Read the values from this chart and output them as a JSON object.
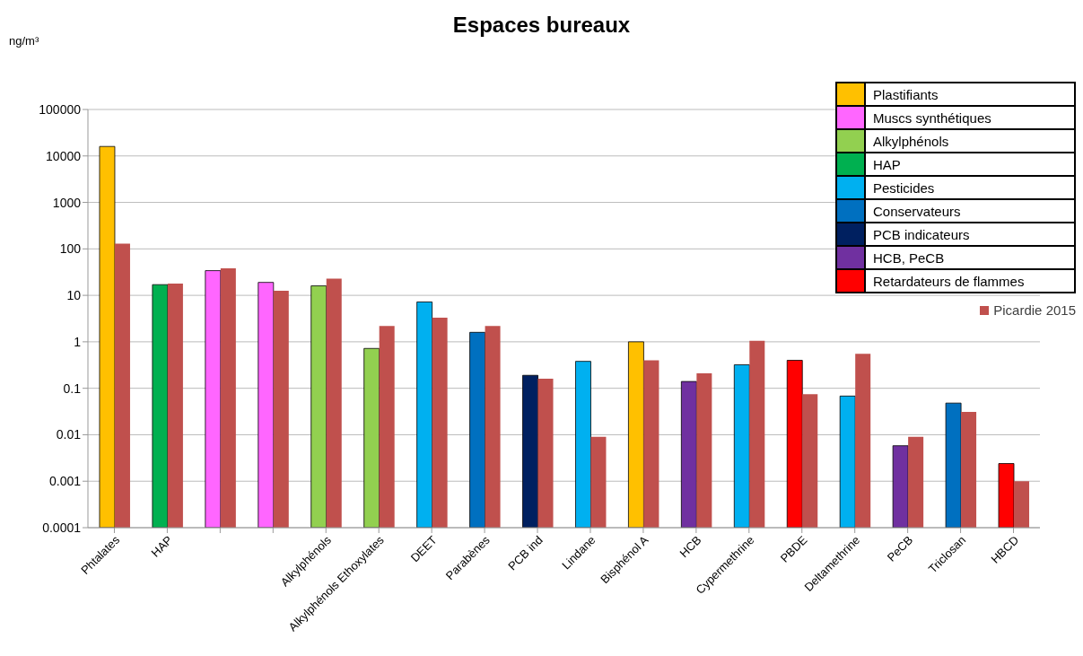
{
  "chart_data": {
    "type": "bar",
    "title": "Espaces bureaux",
    "ylabel": "ng/m³",
    "categories": [
      "Phtalates",
      "HAP",
      null,
      null,
      "Alkylphénols",
      "Alkylphénols Ethoxylates",
      "DEET",
      "Parabènes",
      "PCB ind",
      "Lindane",
      "Bisphénol A",
      "HCB",
      "Cypermethrine",
      "PBDE",
      "Deltamethrine",
      "PeCB",
      "Triclosan",
      "HBCD"
    ],
    "series": [
      {
        "values": [
          16000,
          17,
          34,
          19,
          16,
          0.72,
          7.2,
          1.6,
          0.19,
          0.38,
          1.0,
          0.14,
          0.32,
          0.4,
          0.068,
          0.0058,
          0.048,
          0.0024
        ],
        "colors": [
          "#ffc000",
          "#00b050",
          "#ff66ff",
          "#ff66ff",
          "#92d050",
          "#92d050",
          "#00b0f0",
          "#0070c0",
          "#002060",
          "#00b0f0",
          "#ffc000",
          "#7030a0",
          "#00b0f0",
          "#ff0000",
          "#00b0f0",
          "#7030a0",
          "#0070c0",
          "#ff0000"
        ]
      },
      {
        "name": "Plastifiants",
        "color": "#ffc000",
        "values": [
          null,
          null,
          null,
          null,
          null,
          null,
          null,
          null,
          null,
          null,
          null,
          null,
          null,
          null,
          null,
          null,
          null,
          null
        ]
      },
      {
        "name": "Muscs synthétiques",
        "color": "#ff66ff",
        "values": [
          null,
          null,
          null,
          null,
          null,
          null,
          null,
          null,
          null,
          null,
          null,
          null,
          null,
          null,
          null,
          null,
          null,
          null
        ]
      },
      {
        "name": "Alkylphénols",
        "color": "#92d050",
        "values": [
          null,
          null,
          null,
          null,
          null,
          null,
          null,
          null,
          null,
          null,
          null,
          null,
          null,
          null,
          null,
          null,
          null,
          null
        ]
      },
      {
        "name": "HAP",
        "color": "#00b050",
        "values": [
          null,
          null,
          null,
          null,
          null,
          null,
          null,
          null,
          null,
          null,
          null,
          null,
          null,
          null,
          null,
          null,
          null,
          null
        ]
      },
      {
        "name": "Pesticides",
        "color": "#00b0f0",
        "values": [
          null,
          null,
          null,
          null,
          null,
          null,
          null,
          null,
          null,
          null,
          null,
          null,
          null,
          null,
          null,
          null,
          null,
          null
        ]
      },
      {
        "name": "Conservateurs",
        "color": "#0070c0",
        "values": [
          null,
          null,
          null,
          null,
          null,
          null,
          null,
          null,
          null,
          null,
          null,
          null,
          null,
          null,
          null,
          null,
          null,
          null
        ]
      },
      {
        "name": "PCB indicateurs",
        "color": "#002060",
        "values": [
          null,
          null,
          null,
          null,
          null,
          null,
          null,
          null,
          null,
          null,
          null,
          null,
          null,
          null,
          null,
          null,
          null,
          null
        ]
      },
      {
        "name": "HCB, PeCB",
        "color": "#7030a0",
        "values": [
          null,
          null,
          null,
          null,
          null,
          null,
          null,
          null,
          null,
          null,
          null,
          null,
          null,
          null,
          null,
          null,
          null,
          null
        ]
      },
      {
        "name": "Retardateurs de flammes",
        "color": "#ff0000",
        "values": [
          null,
          null,
          null,
          null,
          null,
          null,
          null,
          null,
          null,
          null,
          null,
          null,
          null,
          null,
          null,
          null,
          null,
          null
        ]
      },
      {
        "name": "Picardie 2015",
        "color": "#c0504d",
        "values": [
          130,
          18,
          38,
          12.5,
          23,
          2.2,
          3.3,
          2.2,
          0.16,
          0.009,
          0.4,
          0.21,
          1.05,
          0.075,
          0.55,
          0.009,
          0.031,
          0.001
        ]
      }
    ],
    "log": true,
    "ylim": [
      0.0001,
      100000
    ],
    "yticks": [
      0.0001,
      0.001,
      0.01,
      0.1,
      1,
      10,
      100,
      1000,
      10000,
      100000
    ],
    "grid": "y",
    "legend": "top right"
  }
}
